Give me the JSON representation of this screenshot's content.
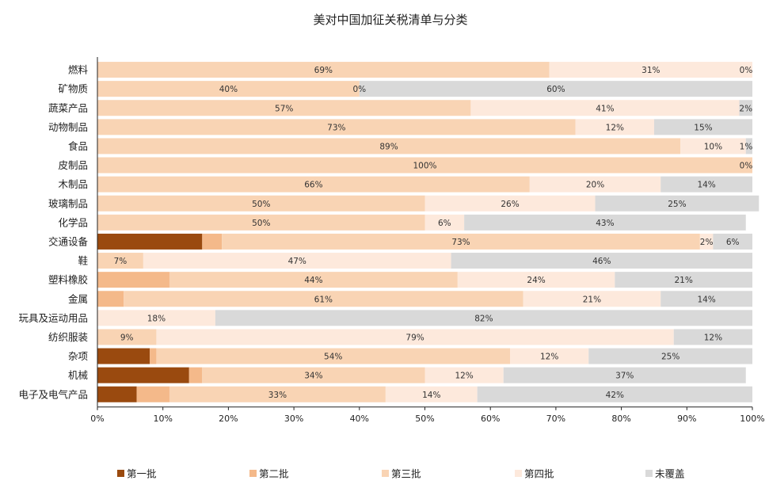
{
  "chart_data": {
    "type": "bar",
    "orientation": "horizontal",
    "stacked": true,
    "normalized": true,
    "title": "美对中国加征关税清单与分类",
    "xlabel": "",
    "ylabel": "",
    "xlim": [
      0,
      100
    ],
    "x_ticks": [
      "0%",
      "10%",
      "20%",
      "30%",
      "40%",
      "50%",
      "60%",
      "70%",
      "80%",
      "90%",
      "100%"
    ],
    "grid": false,
    "legend_position": "bottom",
    "categories": [
      "燃料",
      "矿物质",
      "蔬菜产品",
      "动物制品",
      "食品",
      "皮制品",
      "木制品",
      "玻璃制品",
      "化学品",
      "交通设备",
      "鞋",
      "塑料橡胶",
      "金属",
      "玩具及运动用品",
      "纺织服装",
      "杂项",
      "机械",
      "电子及电气产品"
    ],
    "series": [
      {
        "name": "第一批",
        "color": "#9a4a0f",
        "values": [
          0,
          0,
          0,
          0,
          0,
          0,
          0,
          0,
          0,
          16,
          0,
          0,
          0,
          0,
          0,
          8,
          14,
          6
        ]
      },
      {
        "name": "第二批",
        "color": "#f4b98a",
        "values": [
          0,
          0,
          0,
          0,
          0,
          0,
          0,
          0,
          0,
          3,
          0,
          11,
          4,
          0,
          0,
          1,
          2,
          5
        ]
      },
      {
        "name": "第三批",
        "color": "#f9d4b4",
        "values": [
          69,
          40,
          57,
          73,
          89,
          100,
          66,
          50,
          50,
          73,
          7,
          44,
          61,
          0,
          9,
          54,
          34,
          33
        ]
      },
      {
        "name": "第四批",
        "color": "#fde9dc",
        "values": [
          31,
          0,
          41,
          12,
          10,
          0,
          20,
          26,
          6,
          2,
          47,
          24,
          21,
          18,
          79,
          12,
          12,
          14
        ]
      },
      {
        "name": "未覆盖",
        "color": "#d9d9d9",
        "values": [
          0,
          60,
          2,
          15,
          1,
          0,
          14,
          25,
          43,
          6,
          46,
          21,
          14,
          82,
          12,
          25,
          37,
          42
        ]
      }
    ],
    "data_labels": [
      [
        null,
        null,
        "69%",
        "31%",
        "0%"
      ],
      [
        null,
        null,
        "40%",
        "0%",
        "60%"
      ],
      [
        null,
        null,
        "57%",
        "41%",
        "2%"
      ],
      [
        null,
        null,
        "73%",
        "12%",
        "15%"
      ],
      [
        null,
        null,
        "89%",
        "10%",
        "1%"
      ],
      [
        null,
        null,
        "100%",
        "0%",
        null
      ],
      [
        null,
        null,
        "66%",
        "20%",
        "14%"
      ],
      [
        null,
        null,
        "50%",
        "26%",
        "25%"
      ],
      [
        null,
        null,
        "50%",
        "6%",
        "43%"
      ],
      [
        null,
        null,
        "73%",
        "2%",
        "6%"
      ],
      [
        null,
        null,
        "7%",
        "47%",
        "46%"
      ],
      [
        null,
        null,
        "44%",
        "24%",
        "21%"
      ],
      [
        null,
        null,
        "61%",
        "21%",
        "14%"
      ],
      [
        null,
        null,
        null,
        "18%",
        "82%"
      ],
      [
        null,
        null,
        "9%",
        "79%",
        "12%"
      ],
      [
        null,
        null,
        "54%",
        "12%",
        "25%"
      ],
      [
        null,
        null,
        "34%",
        "12%",
        "37%"
      ],
      [
        null,
        null,
        "33%",
        "14%",
        "42%"
      ]
    ]
  }
}
